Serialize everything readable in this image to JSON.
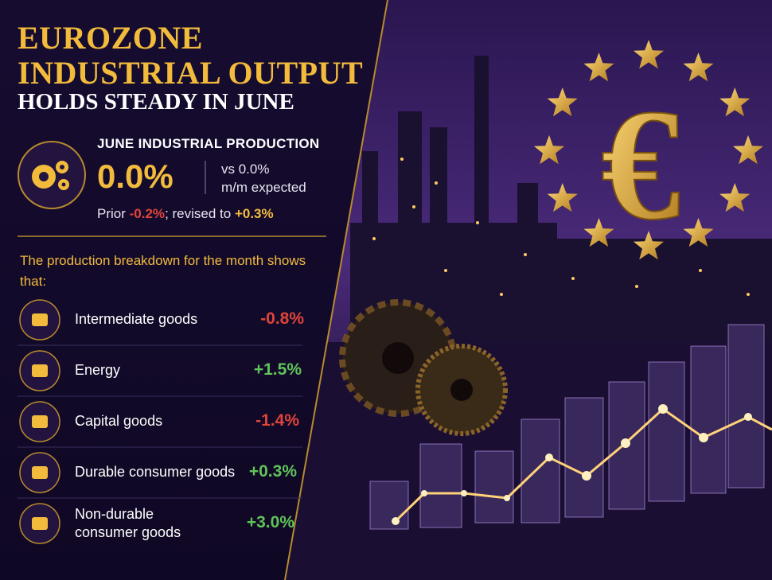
{
  "header": {
    "title": [
      "EUROZONE",
      "INDUSTRIAL OUTPUT"
    ],
    "subtitle": "HOLDS STEADY IN JUNE"
  },
  "headline": {
    "label": "JUNE INDUSTRIAL PRODUCTION",
    "value": "0.0%",
    "expectation": [
      "vs 0.0%",
      "m/m expected"
    ],
    "prior_label": "Prior",
    "prior_value": "-0.2%",
    "prior_color": "#e0443a",
    "revised_label": "; revised to",
    "revised_value": "+0.3%",
    "revised_color": "#f2bb3c"
  },
  "breakdown": {
    "intro": "The production breakdown for the month shows that:",
    "items": [
      {
        "label": "Intermediate goods",
        "value": "-0.8%",
        "color": "#e0443a"
      },
      {
        "label": "Energy",
        "value": "+1.5%",
        "color": "#5fc35a"
      },
      {
        "label": "Capital goods",
        "value": "-1.4%",
        "color": "#e0443a"
      },
      {
        "label": "Durable consumer goods",
        "value": "+0.3%",
        "color": "#5fc35a"
      },
      {
        "label": "Non-durable consumer goods",
        "value": "+3.0%",
        "color": "#5fc35a"
      }
    ]
  },
  "illustration": {
    "symbol": "€"
  }
}
